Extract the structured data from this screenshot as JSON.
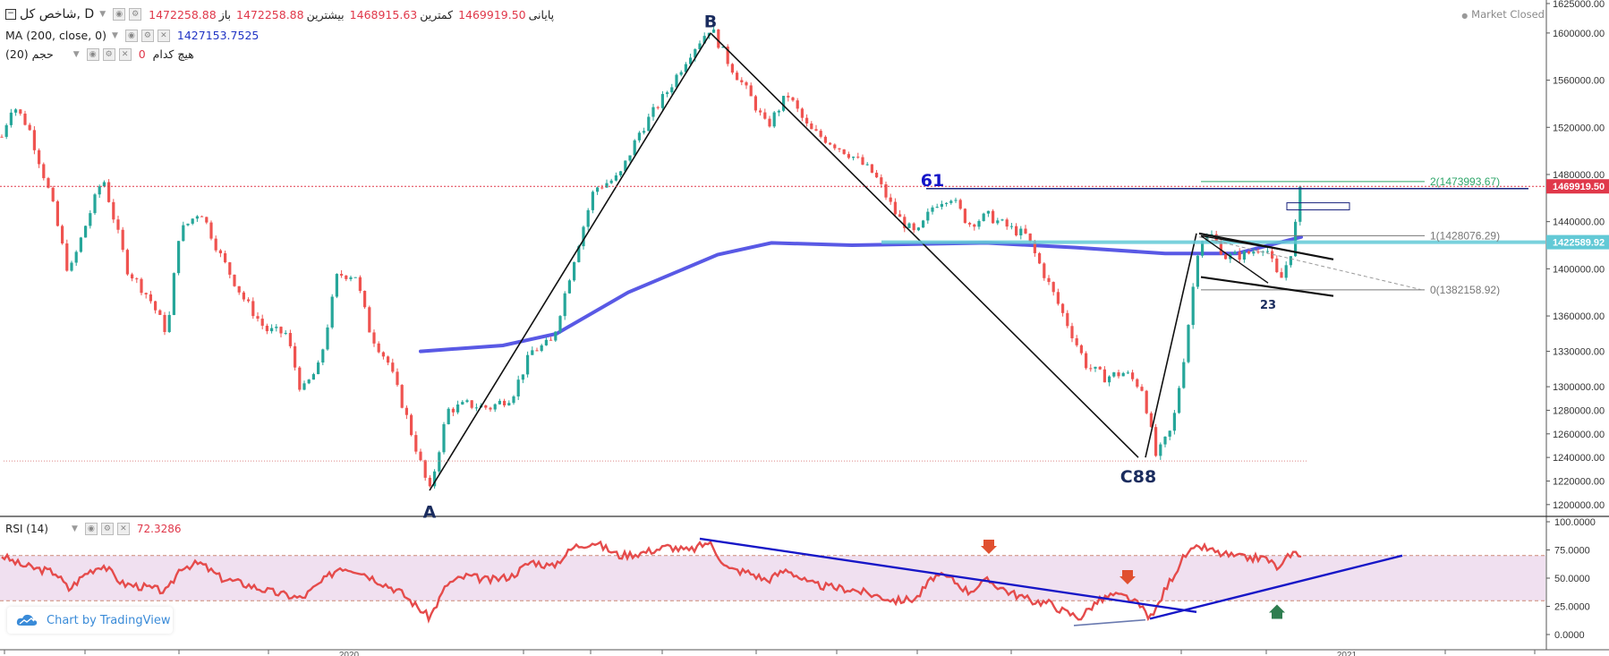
{
  "header": {
    "symbol": "شاخص کل, D",
    "open_label": "باز",
    "open_value": "1472258.88",
    "high_label": "بیشترین",
    "high_value": "1472258.88",
    "low_label": "کمترین",
    "low_value": "1468915.63",
    "close_label": "پایانی",
    "close_value": "1469919.50",
    "ma_label": "MA (200, close, 0)",
    "ma_value": "1427153.7525",
    "volume_label": "حجم (20)",
    "volume_value": "0",
    "volume_none": "هیچ کدام",
    "market_status": "Market Closed"
  },
  "rsi_header": {
    "label": "RSI (14)",
    "value": "72.3286"
  },
  "branding": {
    "text": "Chart by TradingView"
  },
  "colors": {
    "up": "#26a69a",
    "down": "#ef5350",
    "ma": "#3c3ce0",
    "rsi": "#e54b4b",
    "rsi_band": "#f0e0f0",
    "trendline": "#1717c7",
    "fib_green": "#2ea66a",
    "accent_cyan": "#62c9d6"
  },
  "chart_data": [
    {
      "type": "candlestick",
      "title": "شاخص کل, D",
      "ylim": [
        1190000,
        1628000
      ],
      "y_ticks": [
        "1625000.00",
        "1600000.00",
        "1560000.00",
        "1520000.00",
        "1480000.00",
        "1440000.00",
        "1400000.00",
        "1360000.00",
        "1330000.00",
        "1300000.00",
        "1280000.00",
        "1260000.00",
        "1240000.00",
        "1220000.00",
        "1200000.00"
      ],
      "price_labels": [
        {
          "text": "1469919.50",
          "value": 1469919.5,
          "color": "#e0384a"
        },
        {
          "text": "1422589.92",
          "value": 1422589.92,
          "color": "#62c9d6"
        }
      ],
      "x_ticks": [
        "2020",
        "2021"
      ],
      "waypoints": [
        {
          "x": 0,
          "y": 1512000
        },
        {
          "x": 12,
          "y": 1540000
        },
        {
          "x": 30,
          "y": 1520000
        },
        {
          "x": 55,
          "y": 1460000
        },
        {
          "x": 75,
          "y": 1395000
        },
        {
          "x": 95,
          "y": 1440000
        },
        {
          "x": 113,
          "y": 1478000
        },
        {
          "x": 140,
          "y": 1400000
        },
        {
          "x": 165,
          "y": 1375000
        },
        {
          "x": 185,
          "y": 1345000
        },
        {
          "x": 198,
          "y": 1430000
        },
        {
          "x": 222,
          "y": 1450000
        },
        {
          "x": 245,
          "y": 1410000
        },
        {
          "x": 270,
          "y": 1375000
        },
        {
          "x": 295,
          "y": 1348000
        },
        {
          "x": 318,
          "y": 1345000
        },
        {
          "x": 335,
          "y": 1295000
        },
        {
          "x": 355,
          "y": 1318000
        },
        {
          "x": 375,
          "y": 1395000
        },
        {
          "x": 395,
          "y": 1395000
        },
        {
          "x": 412,
          "y": 1345000
        },
        {
          "x": 432,
          "y": 1320000
        },
        {
          "x": 452,
          "y": 1275000
        },
        {
          "x": 478,
          "y": 1210000
        },
        {
          "x": 498,
          "y": 1280000
        },
        {
          "x": 520,
          "y": 1285000
        },
        {
          "x": 545,
          "y": 1282000
        },
        {
          "x": 570,
          "y": 1292000
        },
        {
          "x": 592,
          "y": 1330000
        },
        {
          "x": 615,
          "y": 1338000
        },
        {
          "x": 640,
          "y": 1410000
        },
        {
          "x": 662,
          "y": 1468000
        },
        {
          "x": 690,
          "y": 1478000
        },
        {
          "x": 712,
          "y": 1515000
        },
        {
          "x": 745,
          "y": 1552000
        },
        {
          "x": 768,
          "y": 1582000
        },
        {
          "x": 792,
          "y": 1605000
        },
        {
          "x": 812,
          "y": 1575000
        },
        {
          "x": 835,
          "y": 1548000
        },
        {
          "x": 855,
          "y": 1520000
        },
        {
          "x": 878,
          "y": 1548000
        },
        {
          "x": 902,
          "y": 1518000
        },
        {
          "x": 925,
          "y": 1508000
        },
        {
          "x": 950,
          "y": 1496000
        },
        {
          "x": 975,
          "y": 1480000
        },
        {
          "x": 1000,
          "y": 1445000
        },
        {
          "x": 1022,
          "y": 1428000
        },
        {
          "x": 1042,
          "y": 1455000
        },
        {
          "x": 1060,
          "y": 1462000
        },
        {
          "x": 1080,
          "y": 1438000
        },
        {
          "x": 1102,
          "y": 1445000
        },
        {
          "x": 1125,
          "y": 1435000
        },
        {
          "x": 1145,
          "y": 1428000
        },
        {
          "x": 1165,
          "y": 1395000
        },
        {
          "x": 1188,
          "y": 1358000
        },
        {
          "x": 1212,
          "y": 1318000
        },
        {
          "x": 1232,
          "y": 1308000
        },
        {
          "x": 1255,
          "y": 1312000
        },
        {
          "x": 1275,
          "y": 1298000
        },
        {
          "x": 1290,
          "y": 1240000
        },
        {
          "x": 1308,
          "y": 1265000
        },
        {
          "x": 1322,
          "y": 1330000
        },
        {
          "x": 1338,
          "y": 1425000
        },
        {
          "x": 1352,
          "y": 1428000
        },
        {
          "x": 1368,
          "y": 1410000
        },
        {
          "x": 1390,
          "y": 1412000
        },
        {
          "x": 1412,
          "y": 1420000
        },
        {
          "x": 1428,
          "y": 1388000
        },
        {
          "x": 1442,
          "y": 1418000
        },
        {
          "x": 1452,
          "y": 1472000
        }
      ],
      "ma200": [
        {
          "x": 468,
          "y": 1330000
        },
        {
          "x": 560,
          "y": 1335000
        },
        {
          "x": 620,
          "y": 1345000
        },
        {
          "x": 700,
          "y": 1380000
        },
        {
          "x": 800,
          "y": 1412000
        },
        {
          "x": 860,
          "y": 1422000
        },
        {
          "x": 950,
          "y": 1420000
        },
        {
          "x": 1100,
          "y": 1422000
        },
        {
          "x": 1200,
          "y": 1418000
        },
        {
          "x": 1300,
          "y": 1413000
        },
        {
          "x": 1380,
          "y": 1413000
        },
        {
          "x": 1452,
          "y": 1427000
        }
      ],
      "wave_points": [
        {
          "label": "A",
          "x": 478,
          "y": 1210000
        },
        {
          "label": "B",
          "x": 792,
          "y": 1608000
        },
        {
          "label": "C88",
          "x": 1270,
          "y": 1240000
        },
        {
          "label": "61",
          "x": 1040,
          "y": 1470000
        },
        {
          "label": "23",
          "x": 1415,
          "y": 1386000
        }
      ],
      "fibonacci": [
        {
          "label": "2(1473993.67)",
          "value": 1473993.67,
          "color": "#2ea66a"
        },
        {
          "label": "1(1428076.29)",
          "value": 1428076.29,
          "color": "#777777"
        },
        {
          "label": "0(1382158.92)",
          "value": 1382158.92,
          "color": "#777777"
        }
      ]
    },
    {
      "type": "line",
      "title": "RSI (14)",
      "ylim": [
        0,
        100
      ],
      "y_ticks": [
        "100.0000",
        "75.0000",
        "50.0000",
        "25.0000",
        "0.0000"
      ],
      "overbought": 70,
      "oversold": 30,
      "series": [
        {
          "name": "RSI (14)",
          "points": [
            {
              "x": 0,
              "y": 70
            },
            {
              "x": 20,
              "y": 62
            },
            {
              "x": 40,
              "y": 58
            },
            {
              "x": 60,
              "y": 55
            },
            {
              "x": 75,
              "y": 40
            },
            {
              "x": 95,
              "y": 55
            },
            {
              "x": 113,
              "y": 62
            },
            {
              "x": 135,
              "y": 45
            },
            {
              "x": 160,
              "y": 42
            },
            {
              "x": 185,
              "y": 38
            },
            {
              "x": 200,
              "y": 60
            },
            {
              "x": 222,
              "y": 63
            },
            {
              "x": 245,
              "y": 50
            },
            {
              "x": 270,
              "y": 45
            },
            {
              "x": 300,
              "y": 38
            },
            {
              "x": 335,
              "y": 32
            },
            {
              "x": 355,
              "y": 45
            },
            {
              "x": 378,
              "y": 60
            },
            {
              "x": 398,
              "y": 57
            },
            {
              "x": 420,
              "y": 48
            },
            {
              "x": 445,
              "y": 38
            },
            {
              "x": 478,
              "y": 15
            },
            {
              "x": 498,
              "y": 45
            },
            {
              "x": 520,
              "y": 52
            },
            {
              "x": 545,
              "y": 48
            },
            {
              "x": 570,
              "y": 52
            },
            {
              "x": 592,
              "y": 65
            },
            {
              "x": 615,
              "y": 60
            },
            {
              "x": 640,
              "y": 78
            },
            {
              "x": 662,
              "y": 82
            },
            {
              "x": 690,
              "y": 70
            },
            {
              "x": 712,
              "y": 72
            },
            {
              "x": 745,
              "y": 78
            },
            {
              "x": 768,
              "y": 74
            },
            {
              "x": 790,
              "y": 82
            },
            {
              "x": 812,
              "y": 58
            },
            {
              "x": 835,
              "y": 55
            },
            {
              "x": 855,
              "y": 48
            },
            {
              "x": 878,
              "y": 58
            },
            {
              "x": 902,
              "y": 45
            },
            {
              "x": 925,
              "y": 42
            },
            {
              "x": 950,
              "y": 40
            },
            {
              "x": 975,
              "y": 35
            },
            {
              "x": 1000,
              "y": 30
            },
            {
              "x": 1022,
              "y": 32
            },
            {
              "x": 1042,
              "y": 52
            },
            {
              "x": 1060,
              "y": 50
            },
            {
              "x": 1080,
              "y": 38
            },
            {
              "x": 1102,
              "y": 48
            },
            {
              "x": 1125,
              "y": 38
            },
            {
              "x": 1150,
              "y": 30
            },
            {
              "x": 1170,
              "y": 28
            },
            {
              "x": 1188,
              "y": 20
            },
            {
              "x": 1205,
              "y": 15
            },
            {
              "x": 1222,
              "y": 28
            },
            {
              "x": 1240,
              "y": 35
            },
            {
              "x": 1258,
              "y": 33
            },
            {
              "x": 1272,
              "y": 25
            },
            {
              "x": 1285,
              "y": 14
            },
            {
              "x": 1300,
              "y": 40
            },
            {
              "x": 1322,
              "y": 70
            },
            {
              "x": 1340,
              "y": 78
            },
            {
              "x": 1360,
              "y": 72
            },
            {
              "x": 1385,
              "y": 68
            },
            {
              "x": 1412,
              "y": 68
            },
            {
              "x": 1428,
              "y": 58
            },
            {
              "x": 1440,
              "y": 72
            },
            {
              "x": 1452,
              "y": 72
            }
          ]
        }
      ]
    }
  ]
}
